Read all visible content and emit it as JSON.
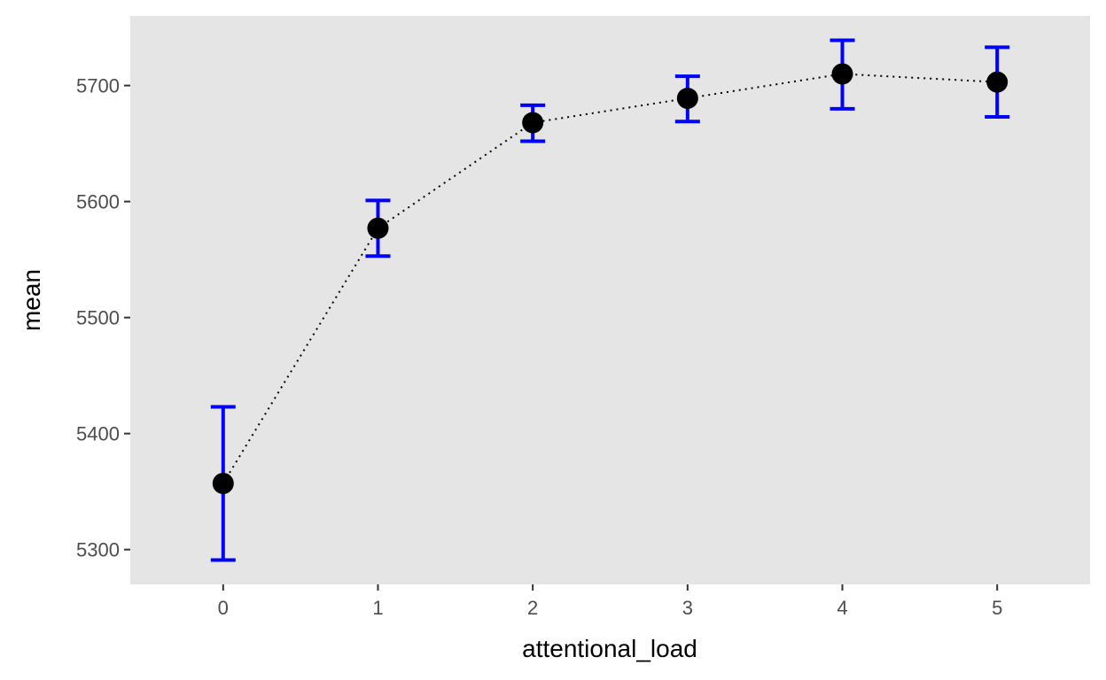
{
  "chart_data": {
    "type": "scatter",
    "title": "",
    "xlabel": "attentional_load",
    "ylabel": "mean",
    "xlim": [
      -0.6,
      5.6
    ],
    "ylim": [
      5270,
      5760
    ],
    "x_ticks": [
      0,
      1,
      2,
      3,
      4,
      5
    ],
    "x_tick_labels": [
      "0",
      "1",
      "2",
      "3",
      "4",
      "5"
    ],
    "y_ticks": [
      5300,
      5400,
      5500,
      5600,
      5700
    ],
    "y_tick_labels": [
      "5300",
      "5400",
      "5500",
      "5600",
      "5700"
    ],
    "grid": false,
    "connector_line": "dotted",
    "series": [
      {
        "x": [
          0,
          1,
          2,
          3,
          4,
          5
        ],
        "y": [
          5357,
          5577,
          5668,
          5689,
          5710,
          5703
        ],
        "error_low": [
          5291,
          5553,
          5652,
          5669,
          5680,
          5673
        ],
        "error_high": [
          5423,
          5601,
          5683,
          5708,
          5739,
          5733
        ]
      }
    ],
    "colors": {
      "panel_background": "#e5e5e5",
      "point": "#000000",
      "error_bar": "#0000ff",
      "line": "#000000",
      "tick_label": "#4d4d4d",
      "axis_title": "#000000",
      "tick_mark": "#333333"
    }
  }
}
